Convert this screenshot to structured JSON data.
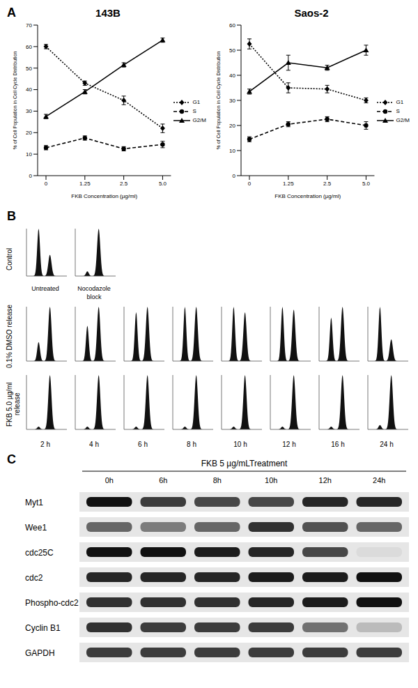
{
  "panel_labels": [
    "A",
    "B",
    "C"
  ],
  "chart_data": [
    {
      "type": "line",
      "title": "143B",
      "x_label": "FKB Concentration (µg/ml)",
      "y_label": "% of Cell Population in Cell Cycle Distribution",
      "categories": [
        "0",
        "1.25",
        "2.5",
        "5.0"
      ],
      "ylim": [
        0,
        70
      ],
      "yticks": [
        0,
        10,
        20,
        30,
        40,
        50,
        60,
        70
      ],
      "legend": "right",
      "series": [
        {
          "name": "G1",
          "color": "#000000",
          "marker": "diamond",
          "line_style": "dotted",
          "values": [
            60,
            43,
            35,
            22
          ],
          "errors": [
            1,
            1,
            2,
            2
          ]
        },
        {
          "name": "S",
          "color": "#000000",
          "marker": "circle",
          "line_style": "dashed",
          "values": [
            13,
            17.5,
            12.5,
            14.5
          ],
          "errors": [
            1,
            1,
            1,
            1.5
          ]
        },
        {
          "name": "G2/M",
          "color": "#000000",
          "marker": "triangle",
          "line_style": "solid",
          "values": [
            27.5,
            39,
            51.5,
            63
          ],
          "errors": [
            1,
            1,
            1,
            1
          ]
        }
      ]
    },
    {
      "type": "line",
      "title": "Saos-2",
      "x_label": "FKB Concentration (µg/ml)",
      "y_label": "% of Cell Population in Cell Cycle Distribution",
      "categories": [
        "0",
        "1.25",
        "2.5",
        "5.0"
      ],
      "ylim": [
        0,
        60
      ],
      "yticks": [
        0,
        10,
        20,
        30,
        40,
        50,
        60
      ],
      "legend": "right",
      "series": [
        {
          "name": "G1",
          "color": "#000000",
          "marker": "diamond",
          "line_style": "dotted",
          "values": [
            52.5,
            35,
            34.5,
            30
          ],
          "errors": [
            2,
            2,
            1.5,
            1
          ]
        },
        {
          "name": "S",
          "color": "#000000",
          "marker": "circle",
          "line_style": "dashed",
          "values": [
            14.5,
            20.5,
            22.5,
            20
          ],
          "errors": [
            1,
            1,
            1,
            1.5
          ]
        },
        {
          "name": "G2/M",
          "color": "#000000",
          "marker": "triangle",
          "line_style": "solid",
          "values": [
            33.5,
            45,
            43,
            50
          ],
          "errors": [
            1,
            3,
            1,
            2
          ]
        }
      ]
    }
  ],
  "panel_b": {
    "rows": [
      {
        "label": "Control",
        "histograms": [
          {
            "caption": "Untreated",
            "g1_peak": 100,
            "g2m_peak": 45
          },
          {
            "caption": "Nocodazole block",
            "g1_peak": 10,
            "g2m_peak": 100
          }
        ]
      },
      {
        "label": "0.1% DMSO release",
        "histograms": [
          {
            "g1_peak": 35,
            "g2m_peak": 100
          },
          {
            "g1_peak": 65,
            "g2m_peak": 100
          },
          {
            "g1_peak": 90,
            "g2m_peak": 100
          },
          {
            "g1_peak": 100,
            "g2m_peak": 100
          },
          {
            "g1_peak": 100,
            "g2m_peak": 90
          },
          {
            "g1_peak": 100,
            "g2m_peak": 95
          },
          {
            "g1_peak": 80,
            "g2m_peak": 100
          },
          {
            "g1_peak": 100,
            "g2m_peak": 40
          }
        ]
      },
      {
        "label": "FKB 5.0 µg/ml release",
        "histograms": [
          {
            "g1_peak": 5,
            "g2m_peak": 100
          },
          {
            "g1_peak": 5,
            "g2m_peak": 100
          },
          {
            "g1_peak": 5,
            "g2m_peak": 100
          },
          {
            "g1_peak": 5,
            "g2m_peak": 100
          },
          {
            "g1_peak": 5,
            "g2m_peak": 100
          },
          {
            "g1_peak": 5,
            "g2m_peak": 100
          },
          {
            "g1_peak": 5,
            "g2m_peak": 100
          },
          {
            "g1_peak": 8,
            "g2m_peak": 100
          }
        ]
      }
    ],
    "time_labels": [
      "2 h",
      "4 h",
      "6 h",
      "8 h",
      "10 h",
      "12 h",
      "16 h",
      "24 h"
    ]
  },
  "panel_c": {
    "title": "FKB 5 µg/mLTreatment",
    "lanes": [
      "0h",
      "6h",
      "8h",
      "10h",
      "12h",
      "24h"
    ],
    "blots": [
      {
        "protein": "Myt1",
        "band_intensity": [
          1,
          0.8,
          0.75,
          0.75,
          0.9,
          0.9
        ]
      },
      {
        "protein": "Wee1",
        "band_intensity": [
          0.6,
          0.5,
          0.6,
          0.85,
          0.7,
          0.6
        ]
      },
      {
        "protein": "cdc25C",
        "band_intensity": [
          1,
          1,
          0.95,
          0.9,
          0.75,
          0.05
        ]
      },
      {
        "protein": "cdc2",
        "band_intensity": [
          0.9,
          0.9,
          0.9,
          0.95,
          0.95,
          1
        ]
      },
      {
        "protein": "Phospho-cdc2",
        "band_intensity": [
          0.85,
          0.85,
          0.85,
          0.9,
          0.95,
          1
        ]
      },
      {
        "protein": "Cyclin B1",
        "band_intensity": [
          0.85,
          0.8,
          0.8,
          0.8,
          0.55,
          0.2
        ]
      },
      {
        "protein": "GAPDH",
        "band_intensity": [
          0.8,
          0.8,
          0.8,
          0.8,
          0.8,
          0.8
        ]
      }
    ]
  }
}
